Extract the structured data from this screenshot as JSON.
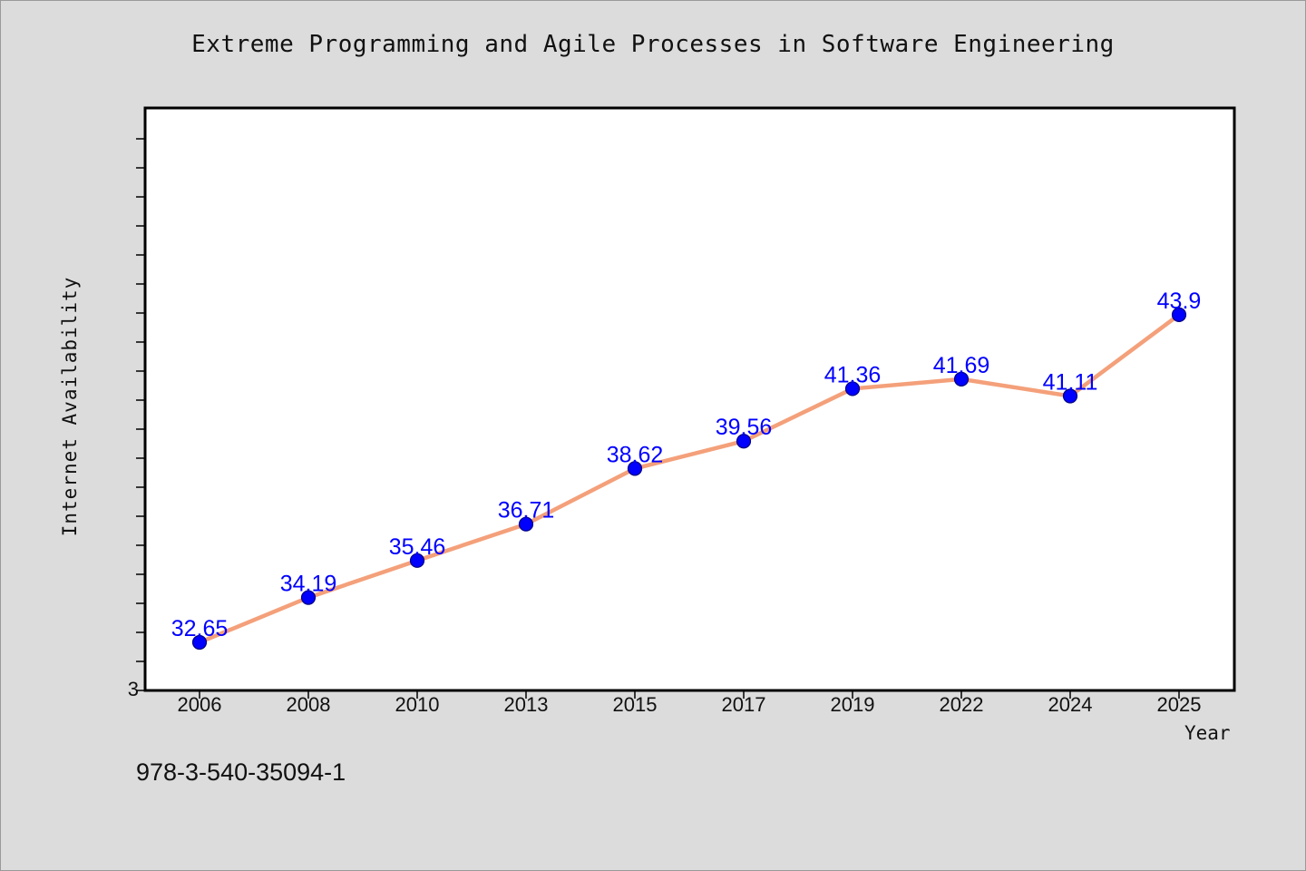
{
  "chart_data": {
    "type": "line",
    "title": "Extreme Programming and Agile Processes in Software Engineering",
    "xlabel": "Year",
    "ylabel": "Internet Availability",
    "categories": [
      "2006",
      "2008",
      "2010",
      "2013",
      "2015",
      "2017",
      "2019",
      "2022",
      "2024",
      "2025"
    ],
    "series": [
      {
        "values": [
          32.65,
          34.19,
          35.46,
          36.71,
          38.62,
          39.56,
          41.36,
          41.69,
          41.11,
          43.9
        ],
        "labels": [
          "32.65",
          "34.19",
          "35.46",
          "36.71",
          "38.62",
          "39.56",
          "41.36",
          "41.69",
          "41.11",
          "43.9"
        ]
      }
    ],
    "y_tick_labels": [
      "3"
    ],
    "ylim": [
      31.0,
      51.0
    ],
    "grid": false,
    "legend": "none",
    "colors": {
      "line": "#f4a07a",
      "marker": "#0000ff",
      "marker_edge": "#000080",
      "data_label": "#0000ff",
      "plot_background": "#ffffff",
      "page_background": "#dcdcdc"
    }
  },
  "footer": {
    "code": "978-3-540-35094-1"
  }
}
